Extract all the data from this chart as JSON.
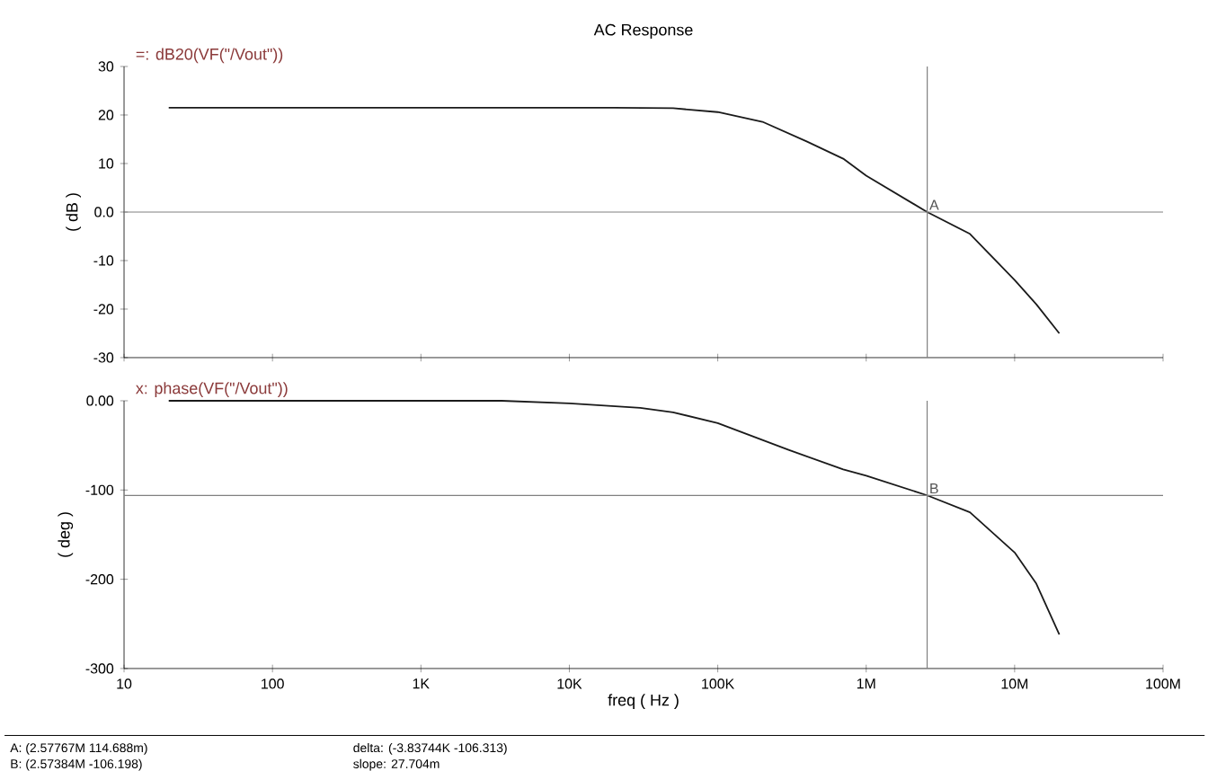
{
  "chart_data": [
    {
      "type": "line",
      "title": "AC Response",
      "ylabel": "( dB )",
      "log": "x",
      "tick_labels": "y",
      "grid": false,
      "xlim": [
        10,
        100000000
      ],
      "ylim": [
        -30,
        30
      ],
      "xticks": [
        {
          "value": 10,
          "label": null
        },
        {
          "value": 100,
          "label": null
        },
        {
          "value": 1000,
          "label": null
        },
        {
          "value": 10000,
          "label": null
        },
        {
          "value": 100000,
          "label": null
        },
        {
          "value": 1000000,
          "label": null
        },
        {
          "value": 10000000,
          "label": null
        },
        {
          "value": 100000000,
          "label": null
        }
      ],
      "yticks": [
        30,
        20,
        10,
        {
          "value": 0,
          "label": "0.0"
        },
        -10,
        -20,
        -30
      ],
      "series": [
        {
          "name": "=: dB20(VF(\"/Vout\"))",
          "color": "#1a1a1a",
          "x": [
            20,
            100,
            1000,
            6000,
            20000,
            50000,
            100000,
            200000,
            400000,
            700000,
            1000000,
            2577670,
            5000000,
            10000000,
            14000000,
            20000000
          ],
          "values": [
            21.5,
            21.5,
            21.5,
            21.5,
            21.5,
            21.4,
            20.6,
            18.6,
            14.5,
            11,
            7.5,
            0,
            -4.5,
            -14,
            -19,
            -25
          ]
        }
      ],
      "ref_lines": [
        {
          "axis": "y",
          "value": 0,
          "color": "#808080"
        },
        {
          "axis": "x",
          "value": 2577670,
          "label": "A",
          "color": "#808080"
        }
      ]
    },
    {
      "type": "line",
      "xlabel": "freq ( Hz )",
      "ylabel": "( deg )",
      "log": "x",
      "grid": false,
      "xlim": [
        10,
        100000000
      ],
      "ylim": [
        -300,
        0
      ],
      "xticks": [
        10,
        100,
        {
          "value": 1000,
          "label": "1K"
        },
        {
          "value": 10000,
          "label": "10K"
        },
        {
          "value": 100000,
          "label": "100K"
        },
        {
          "value": 1000000,
          "label": "1M"
        },
        {
          "value": 10000000,
          "label": "10M"
        },
        {
          "value": 100000000,
          "label": "100M"
        }
      ],
      "yticks": [
        {
          "value": 0,
          "label": "0.00"
        },
        -100,
        -200,
        -300
      ],
      "series": [
        {
          "name": "x: phase(VF(\"/Vout\"))",
          "color": "#1a1a1a",
          "x": [
            20,
            250,
            3500,
            10000,
            30000,
            50000,
            100000,
            300000,
            700000,
            1000000,
            2573840,
            5000000,
            10000000,
            14000000,
            20000000
          ],
          "values": [
            0,
            0,
            0,
            -3,
            -8,
            -13,
            -25,
            -55,
            -77,
            -84,
            -106,
            -125,
            -170,
            -205,
            -262
          ]
        }
      ],
      "ref_lines": [
        {
          "axis": "y",
          "value": -106.198,
          "color": "#808080"
        },
        {
          "axis": "x",
          "value": 2573840,
          "label": "B",
          "color": "#808080"
        }
      ],
      "annotations": [
        "A: (2.57767M 114.688m)",
        "B: (2.57384M -106.198)",
        "delta: (-3.83744K -106.313)",
        "slope: 27.704m"
      ]
    }
  ]
}
